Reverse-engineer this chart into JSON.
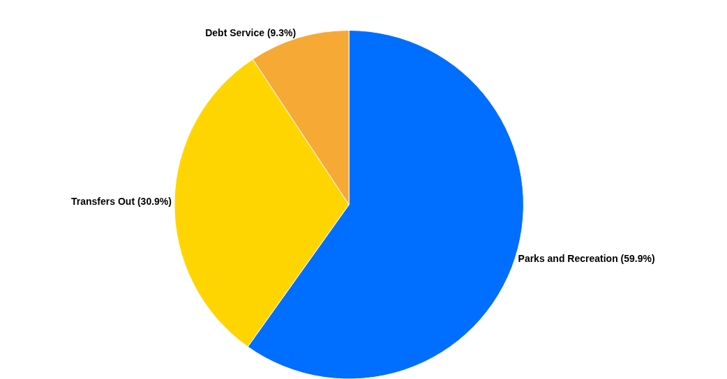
{
  "chart_data": {
    "type": "pie",
    "categories": [
      "Parks and Recreation",
      "Transfers Out",
      "Debt Service"
    ],
    "values": [
      59.9,
      30.9,
      9.3
    ],
    "value_labels": [
      "(59.9%)",
      "(30.9%)",
      "(9.3%)"
    ],
    "colors": [
      "#006eff",
      "#ffd500",
      "#f7a935"
    ],
    "legend": false
  }
}
